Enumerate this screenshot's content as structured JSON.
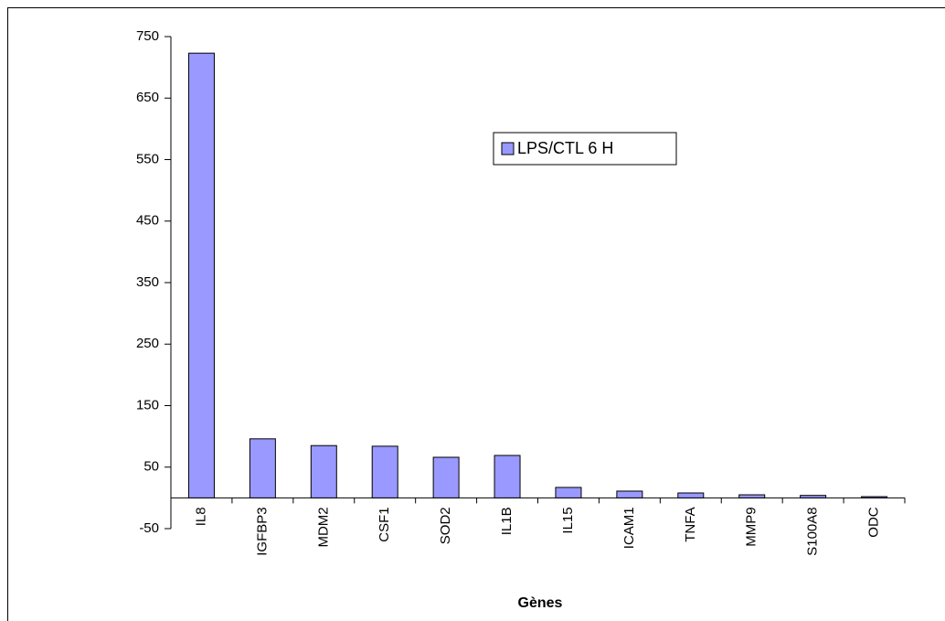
{
  "chart_data": {
    "type": "bar",
    "x_label": "Gènes",
    "categories": [
      "IL8",
      "IGFBP3",
      "MDM2",
      "CSF1",
      "SOD2",
      "IL1B",
      "IL15",
      "ICAM1",
      "TNFA",
      "MMP9",
      "S100A8",
      "ODC"
    ],
    "series": [
      {
        "name": "LPS/CTL 6 H",
        "color": "#9999ff",
        "values": [
          723,
          96,
          85,
          84,
          66,
          69,
          17,
          11,
          8,
          5,
          4,
          2
        ]
      }
    ],
    "ylim": [
      -50,
      750
    ],
    "yticks": [
      -50,
      50,
      150,
      250,
      350,
      450,
      550,
      650,
      750
    ],
    "grid": false,
    "legend": "top-right"
  }
}
